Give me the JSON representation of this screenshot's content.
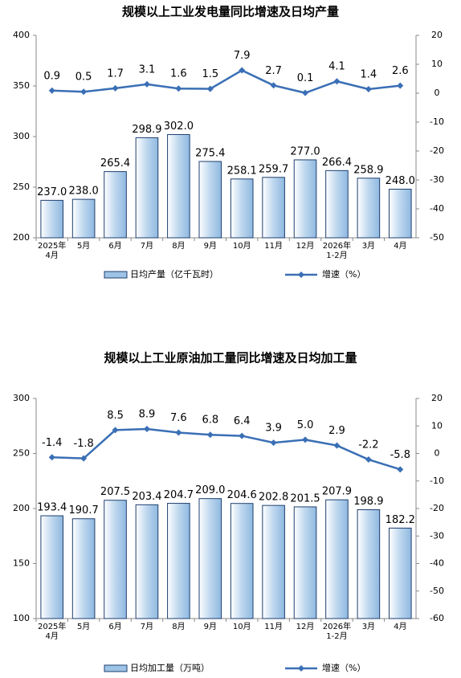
{
  "chart_data": [
    {
      "type": "bar-line",
      "title": "规模以上工业发电量同比增速及日均产量",
      "categories": [
        "2025年\n4月",
        "5月",
        "6月",
        "7月",
        "8月",
        "9月",
        "10月",
        "11月",
        "12月",
        "2026年\n1-2月",
        "3月",
        "4月"
      ],
      "series": [
        {
          "name": "日均产量（亿千瓦时）",
          "color": "#9dc3e6",
          "values": [
            237.0,
            238.0,
            265.4,
            298.9,
            302.0,
            275.4,
            258.1,
            259.7,
            277.0,
            266.4,
            258.9,
            248.0
          ],
          "value_labels": [
            "237.0",
            "238.0",
            "265.4",
            "298.9",
            "302.0",
            "275.4",
            "258.1",
            "259.7",
            "277.0",
            "266.4",
            "258.9",
            "248.0"
          ]
        },
        {
          "name": "增速（%）",
          "color": "#3a6fb5",
          "axis": "y2",
          "values": [
            0.9,
            0.5,
            1.7,
            3.1,
            1.6,
            1.5,
            7.9,
            2.7,
            0.1,
            4.1,
            1.4,
            2.6
          ]
        }
      ],
      "ylim": [
        200,
        400
      ],
      "yticks": [
        200,
        250,
        300,
        350,
        400
      ],
      "y2lim": [
        -50,
        20
      ],
      "y2ticks": [
        -50,
        -40,
        -30,
        -20,
        -10,
        0,
        10,
        20
      ]
    },
    {
      "type": "bar-line",
      "title": "规模以上工业原油加工量同比增速及日均加工量",
      "categories": [
        "2025年\n4月",
        "5月",
        "6月",
        "7月",
        "8月",
        "9月",
        "10月",
        "11月",
        "12月",
        "2026年\n1-2月",
        "3月",
        "4月"
      ],
      "series": [
        {
          "name": "日均加工量（万吨）",
          "color": "#9dc3e6",
          "values": [
            193.4,
            190.7,
            207.5,
            203.4,
            204.7,
            209.0,
            204.6,
            202.8,
            201.5,
            207.9,
            198.9,
            182.2
          ],
          "value_labels": [
            "193.4",
            "190.7",
            "207.5",
            "203.4",
            "204.7",
            "209.0",
            "204.6",
            "202.8",
            "201.5",
            "207.9",
            "198.9",
            "182.2"
          ]
        },
        {
          "name": "增速（%）",
          "color": "#3a6fb5",
          "axis": "y2",
          "values": [
            -1.4,
            -1.8,
            8.5,
            8.9,
            7.6,
            6.8,
            6.4,
            3.9,
            5.0,
            2.9,
            -2.2,
            -5.8
          ],
          "value_labels": [
            "-1.4",
            "-1.8",
            "8.5",
            "8.9",
            "7.6",
            "6.8",
            "6.4",
            "3.9",
            "5.0",
            "2.9",
            "-2.2",
            "-5.8"
          ]
        }
      ],
      "ylim": [
        100,
        300
      ],
      "yticks": [
        100,
        150,
        200,
        250,
        300
      ],
      "y2lim": [
        -60,
        20
      ],
      "y2ticks": [
        -60,
        -50,
        -40,
        -30,
        -20,
        -10,
        0,
        10,
        20
      ]
    }
  ]
}
